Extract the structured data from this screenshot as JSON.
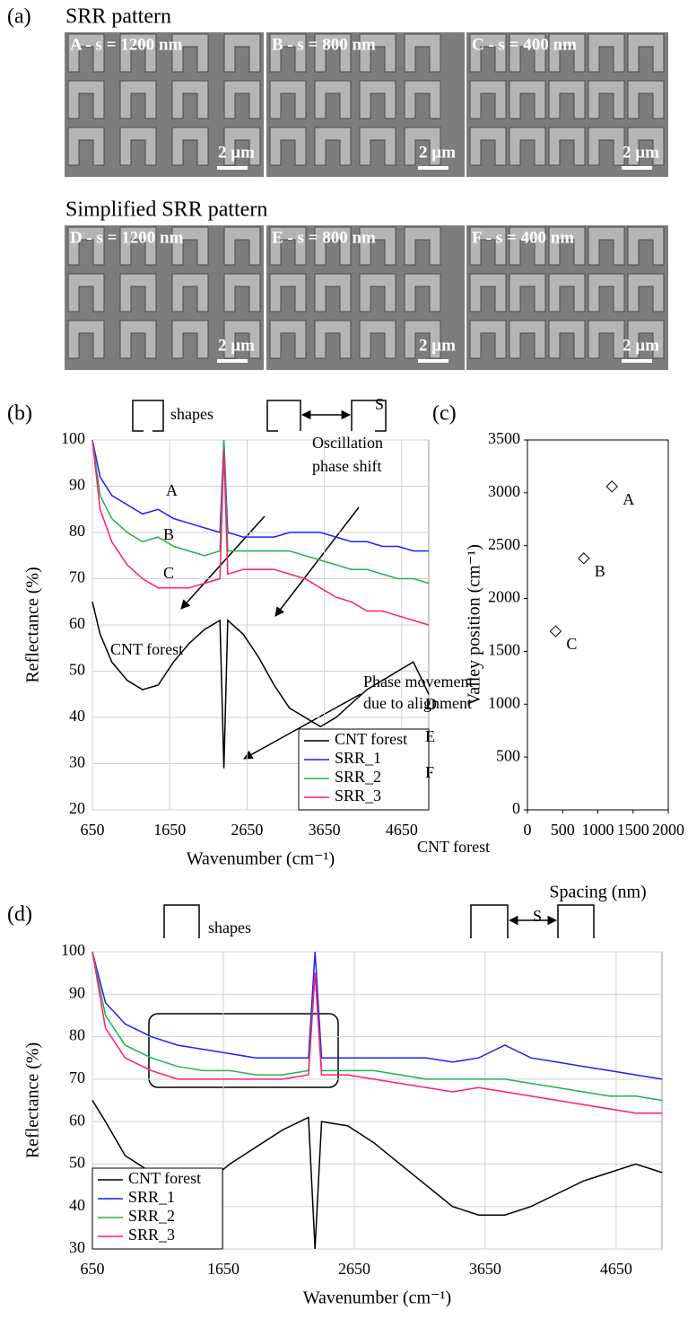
{
  "panel_a": {
    "label": "(a)",
    "groups": [
      {
        "title": "SRR pattern",
        "images": [
          {
            "caption": "A - s = 1200 nm",
            "scale": "2 µm"
          },
          {
            "caption": "B - s = 800 nm",
            "scale": "2 µm"
          },
          {
            "caption": "C - s = 400 nm",
            "scale": "2 µm"
          }
        ]
      },
      {
        "title": "Simplified SRR pattern",
        "images": [
          {
            "caption": "D - s = 1200 nm",
            "scale": "2 µm"
          },
          {
            "caption": "E - s = 800 nm",
            "scale": "2 µm"
          },
          {
            "caption": "F - s = 400 nm",
            "scale": "2 µm"
          }
        ]
      }
    ]
  },
  "chart_data": [
    {
      "type": "line",
      "panel_label": "(b)",
      "x_label": "Wavenumber (cm⁻¹)",
      "y_label": "Reflectance (%)",
      "x": [
        650,
        750,
        900,
        1100,
        1300,
        1500,
        1700,
        1900,
        2100,
        2300,
        2350,
        2400,
        2600,
        2800,
        3000,
        3200,
        3400,
        3600,
        3800,
        4000,
        4200,
        4400,
        4600,
        4800,
        5000
      ],
      "series": [
        {
          "name": "CNT forest",
          "color": "#000000",
          "values": [
            65,
            58,
            52,
            48,
            46,
            47,
            52,
            56,
            59,
            61,
            29,
            61,
            58,
            53,
            47,
            42,
            40,
            38,
            40,
            43,
            46,
            48,
            50,
            52,
            45
          ]
        },
        {
          "name": "SRR_1",
          "color": "#1f1fff",
          "values": [
            100,
            92,
            88,
            86,
            84,
            85,
            83,
            82,
            81,
            80,
            100,
            80,
            79,
            79,
            79,
            80,
            80,
            80,
            79,
            78,
            78,
            77,
            77,
            76,
            76
          ]
        },
        {
          "name": "SRR_2",
          "color": "#22b24c",
          "values": [
            100,
            88,
            83,
            80,
            78,
            79,
            77,
            76,
            75,
            76,
            100,
            76,
            76,
            76,
            76,
            76,
            75,
            74,
            73,
            72,
            72,
            71,
            70,
            70,
            69
          ]
        },
        {
          "name": "SRR_3",
          "color": "#ff1f6e",
          "values": [
            100,
            85,
            78,
            73,
            70,
            68,
            68,
            68,
            69,
            70,
            98,
            71,
            72,
            72,
            72,
            71,
            70,
            68,
            66,
            65,
            63,
            63,
            62,
            61,
            60
          ]
        }
      ],
      "xlim": [
        650,
        5000
      ],
      "xticks": [
        650,
        1650,
        2650,
        3650,
        4650
      ],
      "ylim": [
        20,
        100
      ],
      "yticks": [
        20,
        30,
        40,
        50,
        60,
        70,
        80,
        90,
        100
      ],
      "grid": true,
      "legend": "lower right",
      "annotations": [
        "A",
        "B",
        "C",
        "CNT forest",
        "Oscillation",
        "phase shift",
        "shapes",
        "S"
      ]
    },
    {
      "type": "scatter",
      "panel_label": "(c)",
      "x_label": "Spacing (nm)",
      "y_label": "Valley position (cm⁻¹)",
      "x": [
        400,
        800,
        1200
      ],
      "y": [
        1690,
        2380,
        3060
      ],
      "point_labels": [
        "C",
        "B",
        "A"
      ],
      "xlim": [
        0,
        2000
      ],
      "xticks": [
        0,
        500,
        1000,
        1500,
        2000
      ],
      "ylim": [
        0,
        3500
      ],
      "yticks": [
        0,
        500,
        1000,
        1500,
        2000,
        2500,
        3000,
        3500
      ],
      "grid": false
    },
    {
      "type": "line",
      "panel_label": "(d)",
      "x_label": "Wavenumber (cm⁻¹)",
      "y_label": "Reflectance (%)",
      "x": [
        650,
        750,
        900,
        1100,
        1300,
        1500,
        1700,
        1900,
        2100,
        2300,
        2350,
        2400,
        2600,
        2800,
        3000,
        3200,
        3400,
        3600,
        3800,
        4000,
        4200,
        4400,
        4600,
        4800,
        5000
      ],
      "series": [
        {
          "name": "CNT forest",
          "color": "#000000",
          "values": [
            65,
            60,
            52,
            48,
            45,
            45,
            50,
            54,
            58,
            61,
            30,
            60,
            59,
            55,
            50,
            45,
            40,
            38,
            38,
            40,
            43,
            46,
            48,
            50,
            48
          ]
        },
        {
          "name": "SRR_1",
          "color": "#1f1fff",
          "values": [
            100,
            88,
            83,
            80,
            78,
            77,
            76,
            75,
            75,
            75,
            100,
            75,
            75,
            75,
            75,
            75,
            74,
            75,
            78,
            75,
            74,
            73,
            72,
            71,
            70
          ]
        },
        {
          "name": "SRR_2",
          "color": "#22b24c",
          "values": [
            100,
            85,
            78,
            75,
            73,
            72,
            72,
            71,
            71,
            72,
            95,
            72,
            72,
            72,
            71,
            70,
            70,
            70,
            70,
            69,
            68,
            67,
            66,
            66,
            65
          ]
        },
        {
          "name": "SRR_3",
          "color": "#ff1f6e",
          "values": [
            100,
            82,
            75,
            72,
            70,
            70,
            70,
            70,
            70,
            71,
            95,
            71,
            71,
            70,
            69,
            68,
            67,
            68,
            67,
            66,
            65,
            64,
            63,
            62,
            62
          ]
        }
      ],
      "xlim": [
        650,
        5000
      ],
      "xticks": [
        650,
        1650,
        2650,
        3650,
        4650
      ],
      "ylim": [
        30,
        100
      ],
      "yticks": [
        30,
        40,
        50,
        60,
        70,
        80,
        90,
        100
      ],
      "grid": true,
      "legend": "lower left",
      "annotations": [
        "Phase movement",
        "due to alignment",
        "D",
        "E",
        "F",
        "CNT forest",
        "shapes",
        "S"
      ]
    }
  ]
}
